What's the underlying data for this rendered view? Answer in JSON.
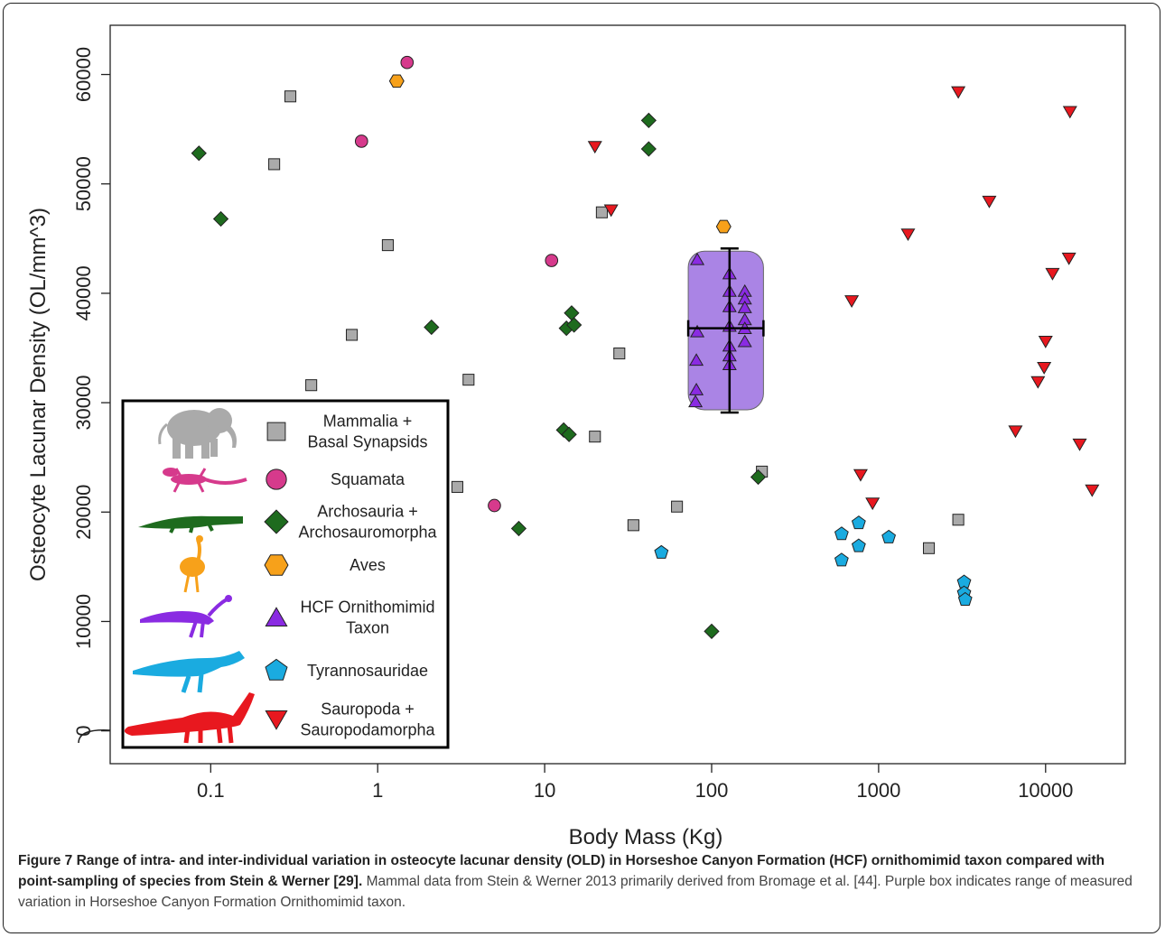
{
  "chart_data": {
    "type": "scatter",
    "x_scale": "log",
    "xlabel": "Body Mass (Kg)",
    "ylabel": "Osteocyte Lacunar Density (OL/mm^3)",
    "xlim": [
      0.025,
      30000
    ],
    "ylim": [
      -3000,
      64500
    ],
    "x_ticks": [
      0.1,
      1,
      10,
      100,
      1000,
      10000
    ],
    "x_tick_labels": [
      "0.1",
      "1",
      "10",
      "100",
      "1000",
      "10000"
    ],
    "y_ticks": [
      0,
      10000,
      20000,
      30000,
      40000,
      50000,
      60000
    ],
    "y_tick_labels": [
      "0",
      "10000",
      "20000",
      "30000",
      "40000",
      "50000",
      "60000"
    ],
    "grid": false,
    "legend_position": "bottom-left",
    "series": [
      {
        "name": "Mammalia + Basal Synapsids",
        "marker": "square",
        "color": "#aaaaaa",
        "points": [
          [
            0.3,
            58000
          ],
          [
            0.24,
            51800
          ],
          [
            1.15,
            44400
          ],
          [
            0.7,
            36200
          ],
          [
            0.4,
            31600
          ],
          [
            3.5,
            32100
          ],
          [
            3.0,
            22300
          ],
          [
            20,
            26900
          ],
          [
            22,
            47400
          ],
          [
            28,
            34500
          ],
          [
            34,
            18800
          ],
          [
            62,
            20500
          ],
          [
            200,
            23700
          ],
          [
            2000,
            16700
          ],
          [
            3000,
            19300
          ]
        ]
      },
      {
        "name": "Squamata",
        "marker": "circle",
        "color": "#d63a8c",
        "points": [
          [
            1.5,
            61100
          ],
          [
            0.8,
            53900
          ],
          [
            11,
            43000
          ],
          [
            5,
            20600
          ]
        ]
      },
      {
        "name": "Archosauria + Archosauromorpha",
        "marker": "diamond",
        "color": "#1e6b1e",
        "points": [
          [
            0.085,
            52800
          ],
          [
            0.115,
            46800
          ],
          [
            2.1,
            36900
          ],
          [
            14.5,
            38200
          ],
          [
            13.5,
            36800
          ],
          [
            15,
            37100
          ],
          [
            13,
            27500
          ],
          [
            14,
            27100
          ],
          [
            7,
            18500
          ],
          [
            42,
            55800
          ],
          [
            42,
            53200
          ],
          [
            190,
            23200
          ],
          [
            100,
            9100
          ]
        ]
      },
      {
        "name": "Aves",
        "marker": "hexagon",
        "color": "#f7a11a",
        "points": [
          [
            1.3,
            59400
          ],
          [
            118,
            46100
          ]
        ]
      },
      {
        "name": "HCF Ornithomimid Taxon",
        "marker": "triangle-up",
        "color": "#8a2be2",
        "points": [
          [
            82,
            43100
          ],
          [
            82,
            36500
          ],
          [
            81,
            33900
          ],
          [
            81,
            31200
          ],
          [
            80,
            30100
          ],
          [
            128,
            41800
          ],
          [
            128,
            40200
          ],
          [
            128,
            38800
          ],
          [
            128,
            37000
          ],
          [
            128,
            35200
          ],
          [
            128,
            34300
          ],
          [
            128,
            33500
          ],
          [
            158,
            40200
          ],
          [
            158,
            39500
          ],
          [
            158,
            38700
          ],
          [
            158,
            37600
          ],
          [
            158,
            36800
          ],
          [
            158,
            35600
          ]
        ]
      },
      {
        "name": "Tyrannosauridae",
        "marker": "pentagon",
        "color": "#1aabe0",
        "points": [
          [
            50,
            16300
          ],
          [
            600,
            18000
          ],
          [
            600,
            15600
          ],
          [
            760,
            19000
          ],
          [
            760,
            16900
          ],
          [
            1150,
            17700
          ],
          [
            3250,
            13600
          ],
          [
            3250,
            12600
          ],
          [
            3300,
            12000
          ]
        ]
      },
      {
        "name": "Sauropoda + Sauropodamorpha",
        "marker": "triangle-down",
        "color": "#e8181f",
        "points": [
          [
            20,
            53400
          ],
          [
            25,
            47600
          ],
          [
            690,
            39300
          ],
          [
            780,
            23400
          ],
          [
            920,
            20800
          ],
          [
            1500,
            45400
          ],
          [
            3000,
            58400
          ],
          [
            4600,
            48400
          ],
          [
            6600,
            27400
          ],
          [
            9000,
            31900
          ],
          [
            9800,
            33200
          ],
          [
            10000,
            35600
          ],
          [
            11000,
            41800
          ],
          [
            13800,
            43200
          ],
          [
            14000,
            56600
          ],
          [
            16000,
            26200
          ],
          [
            19000,
            22000
          ]
        ]
      }
    ],
    "hcf_range_box": {
      "x_range": [
        80,
        185
      ],
      "y_range": [
        29100,
        44100
      ],
      "color": "#9b6fe0",
      "mean_x": 128,
      "mean_y": 36800,
      "error_y": [
        29100,
        44100
      ],
      "error_x": [
        80,
        185
      ]
    },
    "legend": [
      {
        "label_lines": [
          "Mammalia +",
          "Basal Synapsids"
        ],
        "marker": "square",
        "color": "#aaaaaa",
        "silhouette": "elephant-icon"
      },
      {
        "label_lines": [
          "Squamata"
        ],
        "marker": "circle",
        "color": "#d63a8c",
        "silhouette": "lizard-icon"
      },
      {
        "label_lines": [
          "Archosauria +",
          "Archosauromorpha"
        ],
        "marker": "diamond",
        "color": "#1e6b1e",
        "silhouette": "crocodile-icon"
      },
      {
        "label_lines": [
          "Aves"
        ],
        "marker": "hexagon",
        "color": "#f7a11a",
        "silhouette": "ostrich-icon"
      },
      {
        "label_lines": [
          "HCF Ornithomimid",
          "Taxon"
        ],
        "marker": "triangle-up",
        "color": "#8a2be2",
        "silhouette": "ornithomimid-icon"
      },
      {
        "label_lines": [
          "Tyrannosauridae"
        ],
        "marker": "pentagon",
        "color": "#1aabe0",
        "silhouette": "tyrannosaur-icon"
      },
      {
        "label_lines": [
          "Sauropoda +",
          "Sauropodamorpha"
        ],
        "marker": "triangle-down",
        "color": "#e8181f",
        "silhouette": "sauropod-icon"
      }
    ]
  },
  "caption": {
    "bold": "Figure 7 Range of intra- and inter-individual variation in osteocyte lacunar density (OLD) in Horseshoe Canyon Formation (HCF) ornithomimid taxon compared with point-sampling of species from Stein & Werner [29].",
    "rest": "Mammal data from Stein & Werner 2013 primarily derived from Bromage et al. [44]. Purple box indicates range of measured variation in Horseshoe Canyon Formation Ornithomimid taxon."
  }
}
